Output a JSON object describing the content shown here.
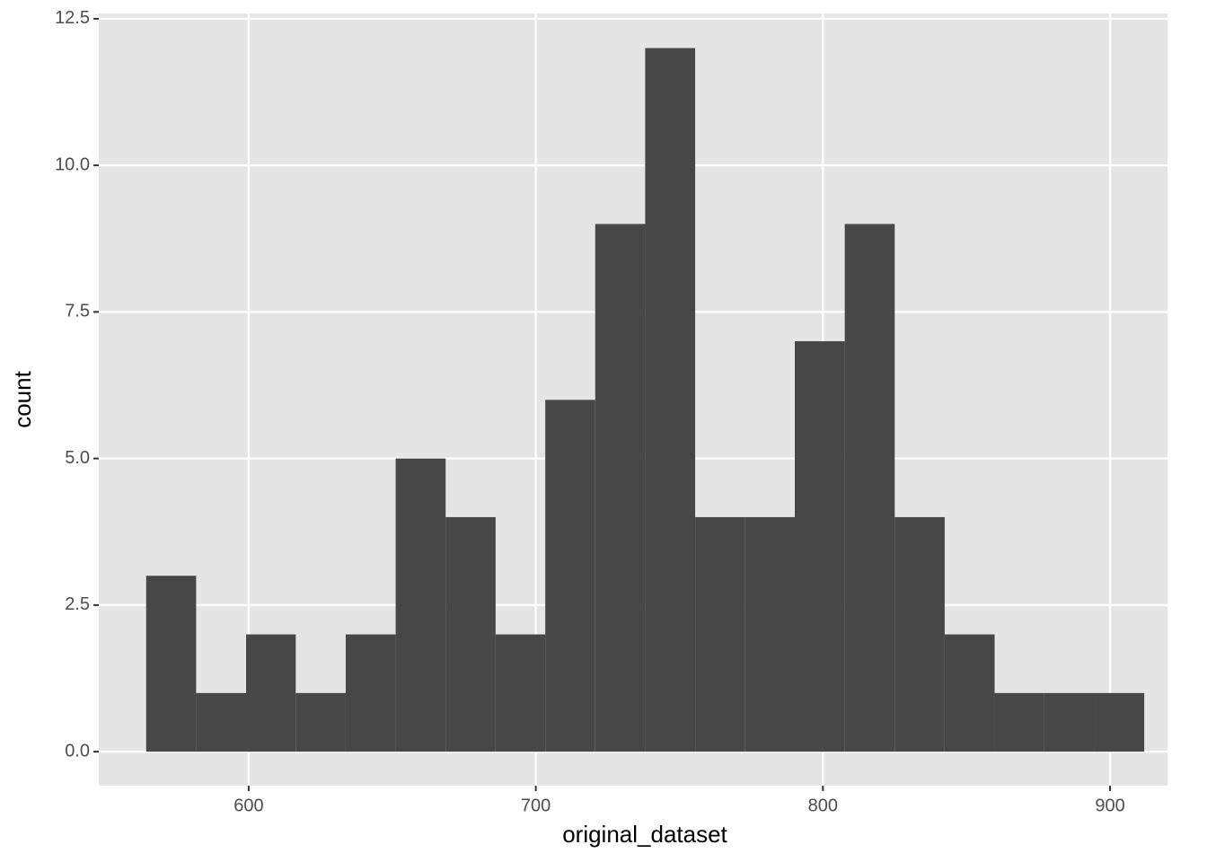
{
  "chart_data": {
    "type": "histogram",
    "x_label": "original_dataset",
    "y_label": "count",
    "bins": [
      564.3,
      581.7,
      599.1,
      616.4,
      633.8,
      651.2,
      668.6,
      686.0,
      703.3,
      720.7,
      738.1,
      755.5,
      772.9,
      790.2,
      807.6,
      825.0,
      842.4,
      859.8,
      877.1,
      894.5,
      911.9
    ],
    "values": [
      3,
      1,
      2,
      1,
      2,
      5,
      4,
      2,
      6,
      9,
      12,
      4,
      4,
      7,
      9,
      4,
      2,
      1,
      1,
      1
    ],
    "color": "#474747",
    "xlim": [
      547.8,
      920.0
    ],
    "xticks": [
      600,
      700,
      800,
      900
    ],
    "ylim": [
      -0.58,
      12.59
    ],
    "yticks": [
      {
        "value": 0,
        "label": "0.0"
      },
      {
        "value": 2.5,
        "label": "2.5"
      },
      {
        "value": 5,
        "label": "5.0"
      },
      {
        "value": 7.5,
        "label": "7.5"
      },
      {
        "value": 10,
        "label": "10.0"
      },
      {
        "value": 12.5,
        "label": "12.5"
      }
    ],
    "grid": true
  }
}
